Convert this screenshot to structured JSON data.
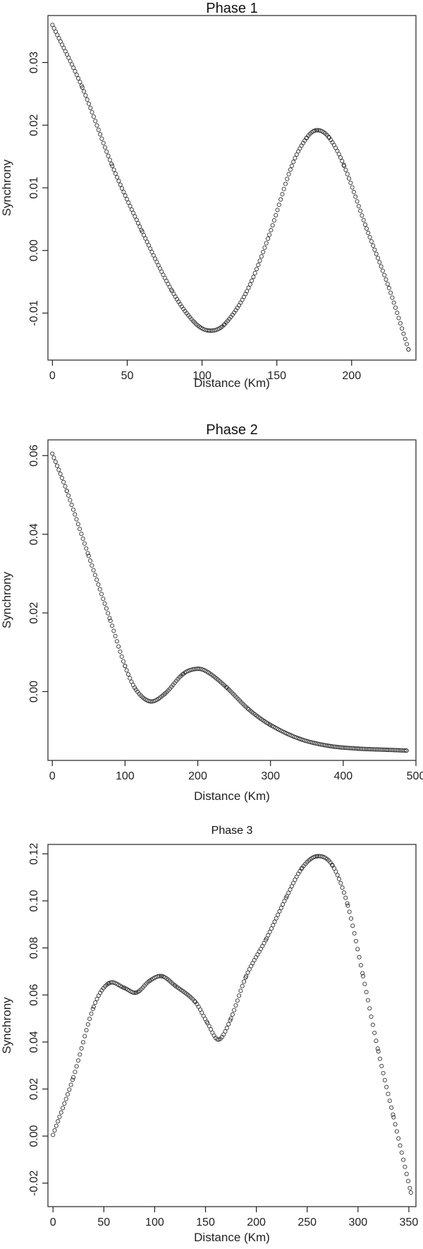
{
  "chart_data": [
    {
      "type": "scatter",
      "title": "Phase 1",
      "xlabel": "Distance (Km)",
      "ylabel": "Synchrony",
      "xlim": [
        -3,
        243
      ],
      "ylim": [
        -0.0175,
        0.0375
      ],
      "xticks": [
        0,
        50,
        100,
        150,
        200
      ],
      "yticks": [
        -0.01,
        0.0,
        0.01,
        0.02,
        0.03
      ],
      "xtick_labels": [
        "0",
        "50",
        "100",
        "150",
        "200"
      ],
      "ytick_labels": [
        "-0.01",
        "0.00",
        "0.01",
        "0.02",
        "0.03"
      ],
      "grid": false,
      "series": [
        {
          "x": [
            0,
            20,
            40,
            60,
            80,
            95,
            105,
            115,
            130,
            145,
            160,
            170,
            177,
            185,
            195,
            210,
            225,
            238
          ],
          "y": [
            0.036,
            0.026,
            0.0135,
            0.003,
            -0.0065,
            -0.0115,
            -0.0128,
            -0.0118,
            -0.0065,
            0.0025,
            0.0135,
            0.018,
            0.0192,
            0.018,
            0.0135,
            0.0035,
            -0.006,
            -0.0158
          ]
        }
      ]
    },
    {
      "type": "scatter",
      "title": "Phase 2",
      "xlabel": "Distance (Km)",
      "ylabel": "Synchrony",
      "xlim": [
        -6,
        500
      ],
      "ylim": [
        -0.0175,
        0.064
      ],
      "xticks": [
        0,
        100,
        200,
        300,
        400,
        500
      ],
      "yticks": [
        0.0,
        0.02,
        0.04,
        0.06
      ],
      "xtick_labels": [
        "0",
        "100",
        "200",
        "300",
        "400",
        "500"
      ],
      "ytick_labels": [
        "0.00",
        "0.02",
        "0.04",
        "0.06"
      ],
      "grid": false,
      "series": [
        {
          "x": [
            0,
            20,
            50,
            80,
            100,
            115,
            135,
            155,
            180,
            200,
            215,
            240,
            270,
            300,
            340,
            380,
            420,
            460,
            487
          ],
          "y": [
            0.0605,
            0.051,
            0.0345,
            0.018,
            0.0065,
            0.0005,
            -0.0025,
            -0.0005,
            0.0045,
            0.0058,
            0.0048,
            0.001,
            -0.0045,
            -0.0085,
            -0.012,
            -0.0138,
            -0.0145,
            -0.0148,
            -0.015
          ]
        }
      ]
    },
    {
      "type": "scatter",
      "title": "Phase 3",
      "xlabel": "Distance (Km)",
      "ylabel": "Synchrony",
      "xlim": [
        -5,
        357
      ],
      "ylim": [
        -0.03,
        0.124
      ],
      "xticks": [
        0,
        50,
        100,
        150,
        200,
        250,
        300,
        350
      ],
      "yticks": [
        -0.02,
        0.0,
        0.02,
        0.04,
        0.06,
        0.08,
        0.1,
        0.12
      ],
      "xtick_labels": [
        "0",
        "50",
        "100",
        "150",
        "200",
        "250",
        "300",
        "350"
      ],
      "ytick_labels": [
        "-0.02",
        "0.00",
        "0.02",
        "0.04",
        "0.06",
        "0.08",
        "0.10",
        "0.12"
      ],
      "grid": false,
      "series": [
        {
          "x": [
            0,
            20,
            40,
            55,
            70,
            82,
            95,
            107,
            120,
            140,
            152,
            163,
            175,
            190,
            210,
            230,
            245,
            260,
            275,
            290,
            305,
            320,
            335,
            352
          ],
          "y": [
            0.0005,
            0.025,
            0.055,
            0.065,
            0.063,
            0.061,
            0.066,
            0.068,
            0.064,
            0.057,
            0.048,
            0.041,
            0.05,
            0.068,
            0.084,
            0.102,
            0.114,
            0.119,
            0.115,
            0.098,
            0.068,
            0.036,
            0.008,
            -0.024
          ]
        }
      ]
    }
  ]
}
